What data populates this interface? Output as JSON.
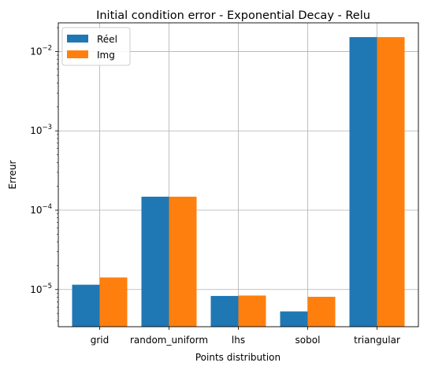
{
  "chart_data": {
    "type": "bar",
    "title": "Initial condition error - Exponential Decay - Relu",
    "xlabel": "Points distribution",
    "ylabel": "Erreur",
    "yscale": "log",
    "ylim": [
      3.4e-06,
      0.023
    ],
    "yticks": [
      {
        "value": 1e-05,
        "base": "10",
        "exp": "−5"
      },
      {
        "value": 0.0001,
        "base": "10",
        "exp": "−4"
      },
      {
        "value": 0.001,
        "base": "10",
        "exp": "−3"
      },
      {
        "value": 0.01,
        "base": "10",
        "exp": "−2"
      }
    ],
    "categories": [
      "grid",
      "random_uniform",
      "lhs",
      "sobol",
      "triangular"
    ],
    "series": [
      {
        "name": "Réel",
        "color": "#1f77b4",
        "values": [
          1.15e-05,
          0.000148,
          8.3e-06,
          5.3e-06,
          0.0152
        ]
      },
      {
        "name": "Img",
        "color": "#ff7f0e",
        "values": [
          1.42e-05,
          0.000148,
          8.4e-06,
          8.1e-06,
          0.0152
        ]
      }
    ],
    "grid": true,
    "legend_position": "upper-left"
  }
}
